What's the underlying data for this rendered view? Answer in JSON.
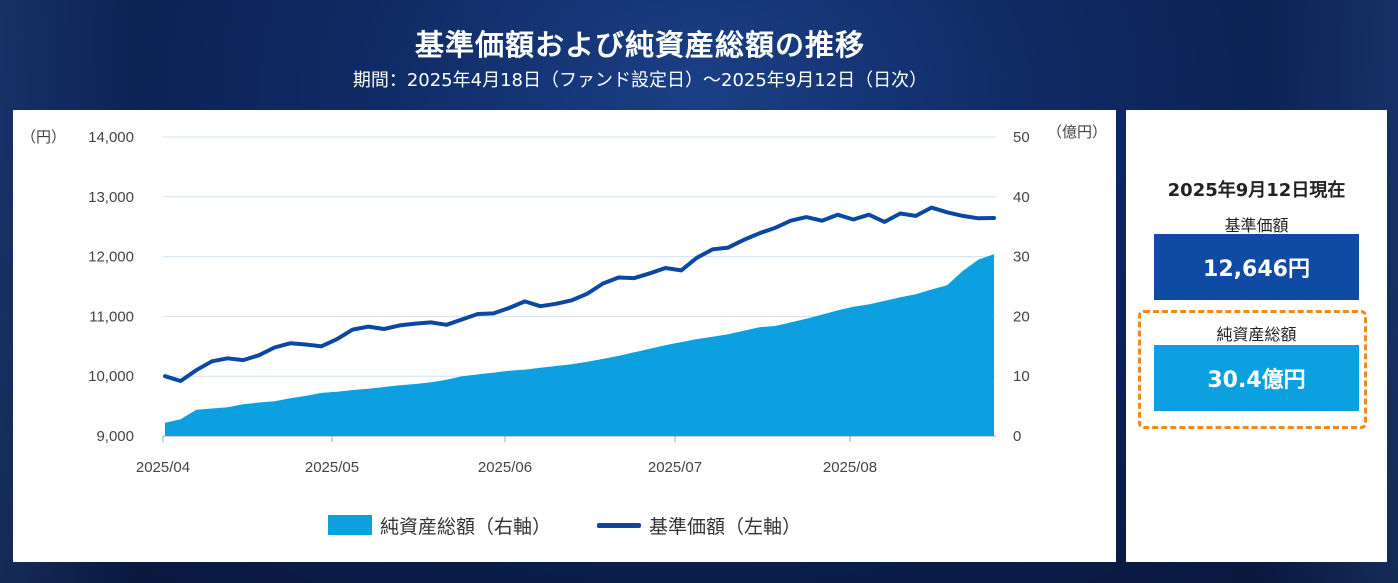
{
  "header": {
    "title": "基準価額および純資産総額の推移",
    "subtitle": "期間：2025年4月18日（ファンド設定日）～2025年9月12日（日次）"
  },
  "chart_data": {
    "type": "area+line",
    "x_ticks": [
      "2025/04",
      "2025/05",
      "2025/06",
      "2025/07",
      "2025/08"
    ],
    "left_axis": {
      "unit": "（円）",
      "ticks": [
        "14,000",
        "13,000",
        "12,000",
        "11,000",
        "10,000",
        "9,000"
      ],
      "range": [
        9000,
        14000
      ]
    },
    "right_axis": {
      "unit": "（億円）",
      "ticks": [
        "50",
        "40",
        "30",
        "20",
        "10",
        "0"
      ],
      "range": [
        0,
        50
      ]
    },
    "series": [
      {
        "name": "純資産総額（右軸）",
        "axis": "right",
        "color": "#0ca0e0",
        "values": [
          2.2,
          2.8,
          4.4,
          4.6,
          4.8,
          5.3,
          5.6,
          5.8,
          6.3,
          6.7,
          7.2,
          7.4,
          7.7,
          7.9,
          8.2,
          8.5,
          8.7,
          9.0,
          9.4,
          10.0,
          10.3,
          10.6,
          10.9,
          11.1,
          11.4,
          11.7,
          12.0,
          12.4,
          12.9,
          13.4,
          14.0,
          14.6,
          15.2,
          15.7,
          16.2,
          16.6,
          17.0,
          17.6,
          18.2,
          18.4,
          19.0,
          19.6,
          20.3,
          21.0,
          21.6,
          22.0,
          22.6,
          23.2,
          23.7,
          24.5,
          25.2,
          27.6,
          29.5,
          30.4
        ]
      },
      {
        "name": "基準価額（左軸）",
        "axis": "left",
        "color": "#0c47a1",
        "values": [
          10000,
          9920,
          10100,
          10250,
          10300,
          10270,
          10350,
          10480,
          10550,
          10530,
          10500,
          10620,
          10780,
          10830,
          10790,
          10850,
          10880,
          10900,
          10860,
          10950,
          11040,
          11050,
          11140,
          11250,
          11170,
          11210,
          11270,
          11380,
          11550,
          11650,
          11640,
          11720,
          11810,
          11770,
          11980,
          12120,
          12150,
          12280,
          12390,
          12480,
          12600,
          12660,
          12600,
          12700,
          12620,
          12700,
          12580,
          12720,
          12680,
          12820,
          12740,
          12680,
          12640,
          12646
        ]
      }
    ]
  },
  "legend": {
    "area_label": "純資産総額（右軸）",
    "line_label": "基準価額（左軸）"
  },
  "side_panel": {
    "date_label": "2025年9月12日現在",
    "nav_label": "基準価額",
    "nav_value": "12,646円",
    "asset_label": "純資産総額",
    "asset_value": "30.4億円"
  }
}
